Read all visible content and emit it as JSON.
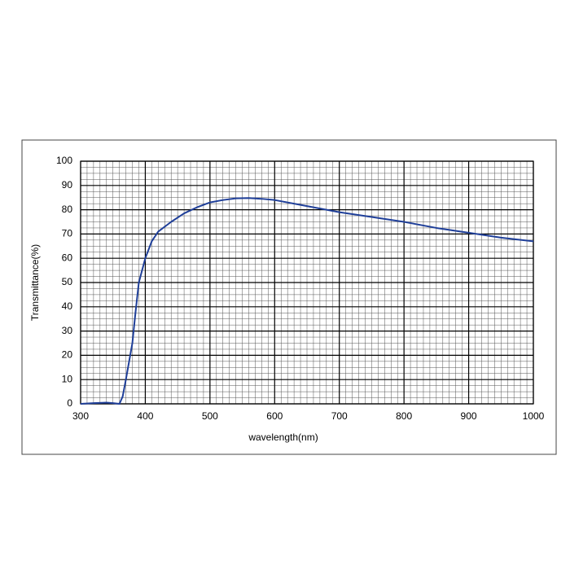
{
  "chart_data": {
    "type": "line",
    "xlabel": "wavelength(nm)",
    "ylabel": "Transmittance(%)",
    "xlim": [
      300,
      1000
    ],
    "xticks": [
      300,
      400,
      500,
      600,
      700,
      800,
      900,
      1000
    ],
    "ylim": [
      0,
      100
    ],
    "yticks": [
      0,
      10,
      20,
      30,
      40,
      50,
      60,
      70,
      80,
      90,
      100
    ],
    "grid": true,
    "series": [
      {
        "color": "#1f3f99",
        "x": [
          300,
          320,
          340,
          350,
          360,
          365,
          370,
          380,
          385,
          390,
          400,
          410,
          420,
          440,
          460,
          480,
          500,
          520,
          540,
          560,
          580,
          600,
          650,
          700,
          750,
          800,
          850,
          900,
          950,
          1000
        ],
        "values": [
          0,
          0.3,
          0.5,
          0.3,
          0,
          3,
          10,
          25,
          38,
          50,
          60,
          67,
          71,
          75,
          78.5,
          81,
          83,
          84,
          84.7,
          84.8,
          84.5,
          84,
          81.5,
          79,
          77,
          75,
          72.5,
          70.5,
          68.5,
          67
        ]
      }
    ]
  }
}
